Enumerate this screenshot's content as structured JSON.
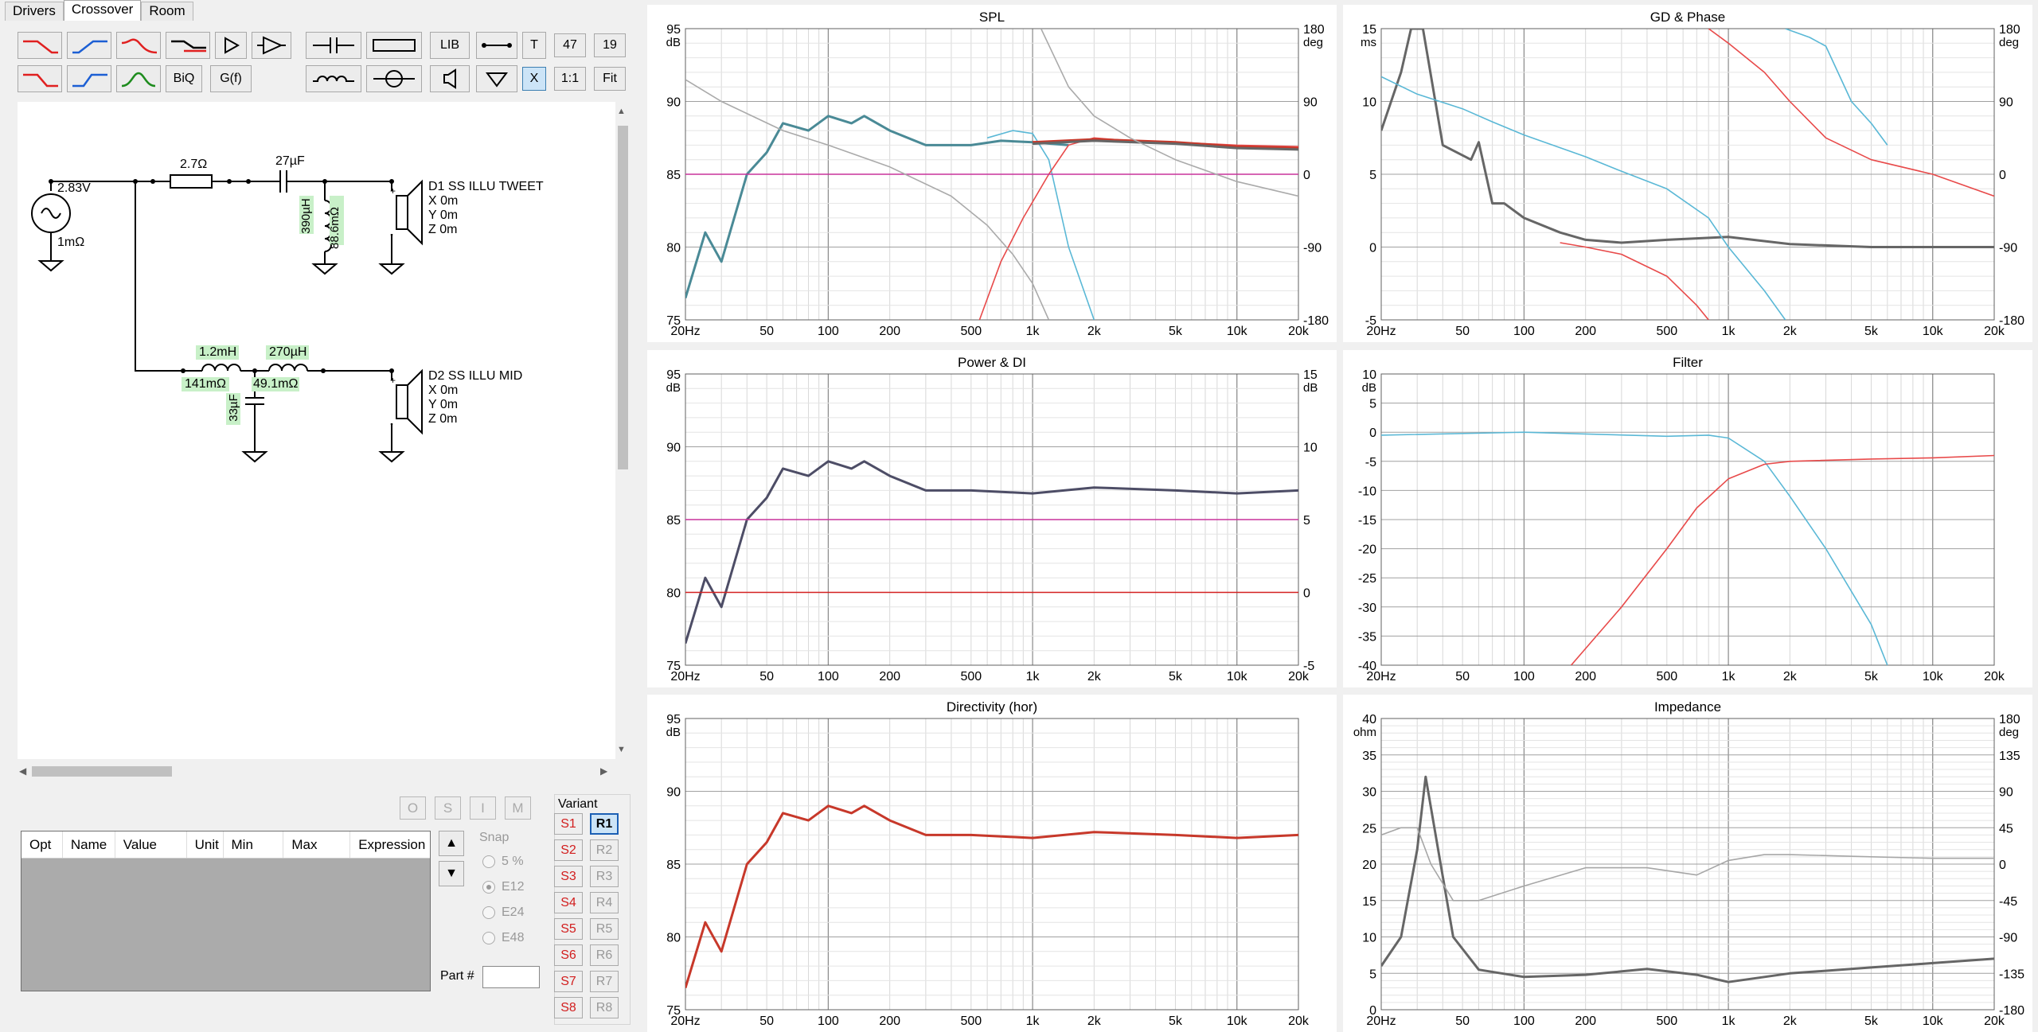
{
  "tabs": [
    "Drivers",
    "Crossover",
    "Room"
  ],
  "toolbar": {
    "biq": "BiQ",
    "gf": "G(f)",
    "lib": "LIB",
    "t": "T",
    "n47": "47",
    "n19": "19",
    "x": "X",
    "one": "1:1",
    "fit": "Fit"
  },
  "schematic": {
    "source_voltage": "2.83V",
    "source_r": "1mΩ",
    "r1": "2.7Ω",
    "c1": "27µF",
    "l_shunt": "390µH",
    "l_shunt_r": "88.6mΩ",
    "d1": {
      "name": "D1 SS ILLU TWEET",
      "x": "X 0m",
      "y": "Y 0m",
      "z": "Z 0m"
    },
    "l1": "1.2mH",
    "l1_r": "141mΩ",
    "l2": "270µH",
    "l2_r": "49.1mΩ",
    "c2": "33µF",
    "d2": {
      "name": "D2 SS ILLU MID",
      "x": "X 0m",
      "y": "Y 0m",
      "z": "Z 0m"
    }
  },
  "opt_buttons": [
    "O",
    "S",
    "I",
    "M"
  ],
  "table_headers": [
    "Opt",
    "Name",
    "Value",
    "Unit",
    "Min",
    "Max",
    "Expression"
  ],
  "snap": {
    "label": "Snap",
    "options": [
      "5 %",
      "E12",
      "E24",
      "E48"
    ],
    "selected": "E12"
  },
  "part_label": "Part #",
  "variant": {
    "label": "Variant",
    "s": [
      "S1",
      "S2",
      "S3",
      "S4",
      "S5",
      "S6",
      "S7",
      "S8"
    ],
    "r": [
      "R1",
      "R2",
      "R3",
      "R4",
      "R5",
      "R6",
      "R7",
      "R8"
    ],
    "selected": "R1"
  },
  "x_ticks": [
    "20Hz",
    "50",
    "100",
    "200",
    "500",
    "1k",
    "2k",
    "5k",
    "10k",
    "20k"
  ],
  "panels": {
    "spl": {
      "title": "SPL",
      "yunit": "dB",
      "y2unit": "deg",
      "yticks": [
        "95",
        "90",
        "85",
        "80",
        "75"
      ],
      "y2ticks": [
        "180",
        "90",
        "0",
        "-90",
        "-180"
      ]
    },
    "gd": {
      "title": "GD & Phase",
      "yunit": "ms",
      "y2unit": "deg",
      "yticks": [
        "15",
        "10",
        "5",
        "0",
        "-5"
      ],
      "y2ticks": [
        "180",
        "90",
        "0",
        "-90",
        "-180"
      ]
    },
    "power": {
      "title": "Power & DI",
      "yunit": "dB",
      "y2unit": "dB",
      "yticks": [
        "95",
        "90",
        "85",
        "80",
        "75"
      ],
      "y2ticks": [
        "15",
        "10",
        "5",
        "0",
        "-5"
      ]
    },
    "filter": {
      "title": "Filter",
      "yunit": "dB",
      "yticks": [
        "10",
        "5",
        "0",
        "-5",
        "-10",
        "-15",
        "-20",
        "-25",
        "-30",
        "-35",
        "-40"
      ]
    },
    "dir": {
      "title": "Directivity (hor)",
      "yunit": "dB",
      "yticks": [
        "95",
        "90",
        "85",
        "80",
        "75"
      ]
    },
    "imp": {
      "title": "Impedance",
      "yunit": "ohm",
      "y2unit": "deg",
      "yticks": [
        "40",
        "35",
        "30",
        "25",
        "20",
        "15",
        "10",
        "5",
        "0"
      ],
      "y2ticks": [
        "180",
        "135",
        "90",
        "45",
        "0",
        "-45",
        "-90",
        "-135",
        "-180"
      ]
    }
  },
  "chart_data": [
    {
      "type": "line",
      "title": "SPL",
      "ylim": [
        75,
        95
      ],
      "y2lim": [
        -180,
        180
      ],
      "xscale": "log",
      "xlim": [
        20,
        20000
      ],
      "series": [
        {
          "color": "#4a8a96",
          "x": [
            20,
            25,
            30,
            40,
            50,
            60,
            80,
            100,
            130,
            150,
            200,
            300,
            500,
            700,
            1000,
            1500
          ],
          "y": [
            76.5,
            81,
            79,
            85,
            86.5,
            88.5,
            88,
            89,
            88.5,
            89,
            88,
            87,
            87,
            87.3,
            87.2,
            87
          ]
        },
        {
          "color": "#5ab8d6",
          "x": [
            600,
            800,
            1000,
            1200,
            1500,
            2000
          ],
          "y": [
            87.5,
            88,
            87.8,
            86,
            80,
            75
          ]
        },
        {
          "color": "#e84a4a",
          "x": [
            550,
            700,
            900,
            1200,
            1500,
            2000,
            3000,
            5000,
            10000,
            20000
          ],
          "y": [
            75,
            79,
            82,
            85,
            87,
            87.5,
            87.3,
            87.2,
            87,
            86.9
          ]
        },
        {
          "color": "#c7382a",
          "x": [
            1000,
            2000,
            5000,
            10000,
            20000
          ],
          "y": [
            87.2,
            87.4,
            87.2,
            86.9,
            86.8
          ]
        },
        {
          "color": "#666666",
          "x": [
            1000,
            2000,
            5000,
            10000,
            20000
          ],
          "y": [
            87.1,
            87.3,
            87.1,
            86.8,
            86.7
          ]
        },
        {
          "color": "#c8339c",
          "x": [
            20,
            20000
          ],
          "y": [
            85,
            85
          ]
        },
        {
          "color": "#aaaaaa",
          "x": [
            20,
            30,
            60,
            100,
            200,
            400,
            600,
            800,
            1000,
            1200
          ],
          "y": [
            91.5,
            90,
            88,
            87,
            85.5,
            83.5,
            81.5,
            79.5,
            77.5,
            75
          ]
        },
        {
          "color": "#aaaaaa",
          "x": [
            1100,
            1500,
            2000,
            3000,
            5000,
            10000,
            20000
          ],
          "y": [
            95,
            91,
            89,
            87.5,
            86,
            84.5,
            83.5
          ]
        }
      ]
    },
    {
      "type": "line",
      "title": "GD & Phase",
      "ylim": [
        -5,
        15
      ],
      "y2lim": [
        -180,
        180
      ],
      "xscale": "log",
      "xlim": [
        20,
        20000
      ],
      "series": [
        {
          "color": "#666666",
          "x": [
            20,
            25,
            28,
            32,
            40,
            55,
            60,
            70,
            80,
            100,
            150,
            200,
            300,
            500,
            1000,
            2000,
            5000,
            10000,
            20000
          ],
          "y": [
            8,
            12,
            15,
            15,
            7,
            6,
            7.2,
            3,
            3,
            2,
            1,
            0.5,
            0.3,
            0.5,
            0.7,
            0.2,
            0,
            0,
            0
          ]
        },
        {
          "color": "#5ab8d6",
          "x": [
            20,
            30,
            50,
            70,
            100,
            200,
            300,
            500,
            800,
            1000,
            1500,
            1900
          ],
          "y": [
            11.7,
            10.5,
            9.5,
            8.6,
            7.7,
            6.2,
            5.2,
            4,
            2,
            0,
            -3,
            -5
          ]
        },
        {
          "color": "#5ab8d6",
          "x": [
            1900,
            2500,
            3000,
            4000,
            5000,
            6000
          ],
          "y": [
            15,
            14.4,
            13.8,
            10,
            8.5,
            7
          ]
        },
        {
          "color": "#e84a4a",
          "x": [
            150,
            200,
            300,
            500,
            700,
            800
          ],
          "y": [
            0.3,
            0,
            -0.5,
            -2,
            -4,
            -5
          ]
        },
        {
          "color": "#e84a4a",
          "x": [
            800,
            1000,
            1500,
            2000,
            3000,
            5000,
            10000,
            20000
          ],
          "y": [
            15,
            14,
            12,
            10,
            7.5,
            6,
            5,
            3.5
          ]
        }
      ]
    },
    {
      "type": "line",
      "title": "Power & DI",
      "ylim": [
        75,
        95
      ],
      "y2lim": [
        -5,
        15
      ],
      "xscale": "log",
      "xlim": [
        20,
        20000
      ],
      "series": [
        {
          "color": "#4d4d66",
          "x": [
            20,
            25,
            30,
            40,
            50,
            60,
            80,
            100,
            130,
            150,
            200,
            300,
            500,
            1000,
            2000,
            5000,
            10000,
            20000
          ],
          "y": [
            76.5,
            81,
            79,
            85,
            86.5,
            88.5,
            88,
            89,
            88.5,
            89,
            88,
            87,
            87,
            86.8,
            87.2,
            87,
            86.8,
            87
          ]
        },
        {
          "color": "#c8339c",
          "x": [
            20,
            20000
          ],
          "y": [
            85,
            85
          ]
        },
        {
          "color": "#d42020",
          "x": [
            20,
            20000
          ],
          "y": [
            80,
            80
          ]
        }
      ]
    },
    {
      "type": "line",
      "title": "Filter",
      "ylim": [
        -40,
        10
      ],
      "xscale": "log",
      "xlim": [
        20,
        20000
      ],
      "series": [
        {
          "color": "#5ab8d6",
          "x": [
            20,
            100,
            200,
            500,
            800,
            1000,
            1500,
            2000,
            3000,
            5000,
            6000
          ],
          "y": [
            -0.5,
            0,
            -0.3,
            -0.7,
            -0.5,
            -1,
            -5,
            -11,
            -20,
            -33,
            -40
          ]
        },
        {
          "color": "#e84a4a",
          "x": [
            170,
            300,
            500,
            700,
            1000,
            1500,
            2000,
            5000,
            10000,
            20000
          ],
          "y": [
            -40,
            -30,
            -20,
            -13,
            -8,
            -5.5,
            -5,
            -4.6,
            -4.4,
            -4
          ]
        }
      ]
    },
    {
      "type": "line",
      "title": "Directivity (hor)",
      "ylim": [
        75,
        95
      ],
      "xscale": "log",
      "xlim": [
        20,
        20000
      ],
      "series": [
        {
          "color": "#c7382a",
          "x": [
            20,
            25,
            30,
            40,
            50,
            60,
            80,
            100,
            130,
            150,
            200,
            300,
            500,
            1000,
            2000,
            5000,
            10000,
            20000
          ],
          "y": [
            76.5,
            81,
            79,
            85,
            86.5,
            88.5,
            88,
            89,
            88.5,
            89,
            88,
            87,
            87,
            86.8,
            87.2,
            87,
            86.8,
            87
          ]
        }
      ]
    },
    {
      "type": "line",
      "title": "Impedance",
      "ylim": [
        0,
        40
      ],
      "y2lim": [
        -180,
        180
      ],
      "xscale": "log",
      "xlim": [
        20,
        20000
      ],
      "series": [
        {
          "color": "#666666",
          "x": [
            20,
            25,
            30,
            33,
            38,
            45,
            60,
            100,
            200,
            400,
            700,
            1000,
            2000,
            5000,
            10000,
            20000
          ],
          "y": [
            6,
            10,
            22,
            32,
            22,
            10,
            5.5,
            4.5,
            4.8,
            5.6,
            4.8,
            3.8,
            5,
            5.8,
            6.4,
            7
          ]
        },
        {
          "color": "#a6a6a6",
          "x": [
            20,
            25,
            30,
            35,
            45,
            60,
            100,
            200,
            400,
            700,
            1000,
            1500,
            2000,
            5000,
            10000,
            20000
          ],
          "y": [
            24,
            25,
            25,
            20,
            15,
            15,
            17,
            19.5,
            19.5,
            18.5,
            20.5,
            21.3,
            21.3,
            21,
            20.8,
            20.8
          ]
        }
      ]
    }
  ]
}
